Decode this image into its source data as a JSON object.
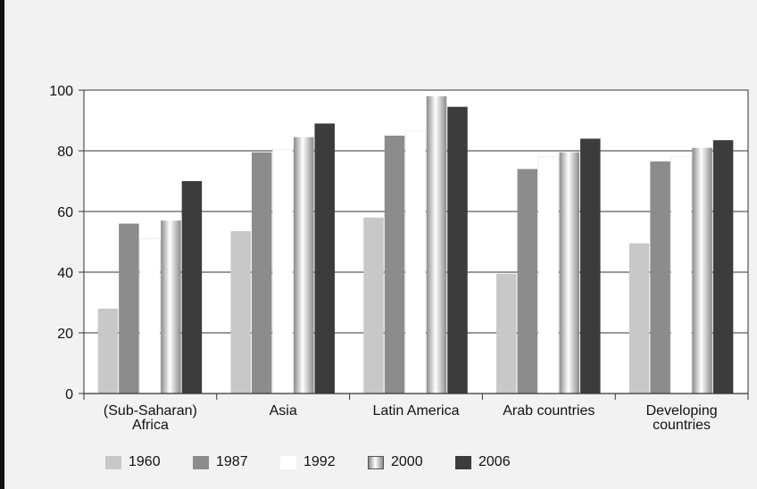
{
  "chart_data": {
    "type": "bar",
    "title": "",
    "xlabel": "",
    "ylabel": "",
    "ylim": [
      0,
      100
    ],
    "yticks": [
      0,
      20,
      40,
      60,
      80,
      100
    ],
    "grid": "horizontal",
    "legend_position": "bottom",
    "categories": [
      [
        "(Sub-Saharan)",
        "Africa"
      ],
      [
        "Asia"
      ],
      [
        "Latin America"
      ],
      [
        "Arab countries"
      ],
      [
        "Developing",
        "countries"
      ]
    ],
    "series": [
      {
        "name": "1960",
        "color": "#c8c8c8",
        "values": [
          28,
          53.5,
          58,
          39.5,
          49.5
        ]
      },
      {
        "name": "1987",
        "color": "#8c8c8c",
        "values": [
          56,
          79.5,
          85,
          74,
          76.5
        ]
      },
      {
        "name": "1992",
        "color": "#ffffff",
        "values": [
          51,
          80.5,
          86.5,
          78,
          78
        ]
      },
      {
        "name": "2000",
        "color": "gradient",
        "values": [
          57,
          84.5,
          98,
          79.5,
          81
        ]
      },
      {
        "name": "2006",
        "color": "#3c3c3c",
        "values": [
          70,
          89,
          94.5,
          84,
          83.5
        ]
      }
    ]
  }
}
